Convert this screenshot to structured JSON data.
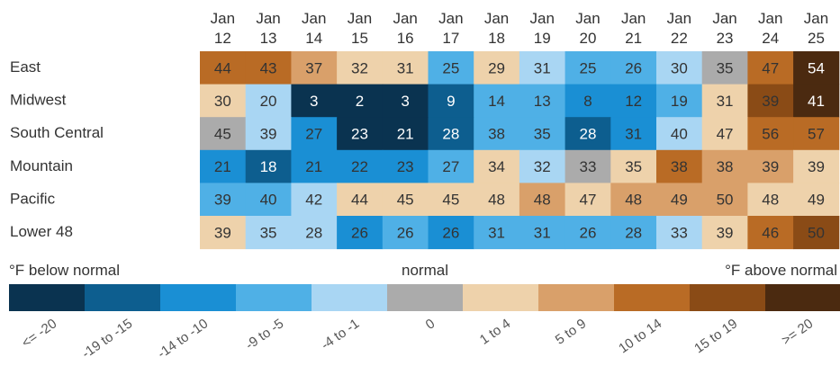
{
  "chart_data": {
    "type": "heatmap",
    "columns": [
      [
        "Jan",
        "12"
      ],
      [
        "Jan",
        "13"
      ],
      [
        "Jan",
        "14"
      ],
      [
        "Jan",
        "15"
      ],
      [
        "Jan",
        "16"
      ],
      [
        "Jan",
        "17"
      ],
      [
        "Jan",
        "18"
      ],
      [
        "Jan",
        "19"
      ],
      [
        "Jan",
        "20"
      ],
      [
        "Jan",
        "21"
      ],
      [
        "Jan",
        "22"
      ],
      [
        "Jan",
        "23"
      ],
      [
        "Jan",
        "24"
      ],
      [
        "Jan",
        "25"
      ]
    ],
    "rows": [
      "East",
      "Midwest",
      "South Central",
      "Mountain",
      "Pacific",
      "Lower 48"
    ],
    "values": [
      [
        44,
        43,
        37,
        32,
        31,
        25,
        29,
        31,
        25,
        26,
        30,
        35,
        47,
        54
      ],
      [
        30,
        20,
        3,
        2,
        3,
        9,
        14,
        13,
        8,
        12,
        19,
        31,
        39,
        41
      ],
      [
        45,
        39,
        27,
        23,
        21,
        28,
        38,
        35,
        28,
        31,
        40,
        47,
        56,
        57
      ],
      [
        21,
        18,
        21,
        22,
        23,
        27,
        34,
        32,
        33,
        35,
        38,
        38,
        39,
        39
      ],
      [
        39,
        40,
        42,
        44,
        45,
        45,
        48,
        48,
        47,
        48,
        49,
        50,
        48,
        49
      ],
      [
        39,
        35,
        28,
        26,
        26,
        26,
        31,
        31,
        26,
        28,
        33,
        39,
        46,
        50
      ]
    ],
    "category_index": [
      [
        8,
        8,
        7,
        6,
        6,
        3,
        6,
        4,
        3,
        3,
        4,
        5,
        8,
        10
      ],
      [
        6,
        4,
        0,
        0,
        0,
        1,
        3,
        3,
        2,
        2,
        3,
        6,
        9,
        10
      ],
      [
        5,
        4,
        2,
        0,
        0,
        1,
        3,
        3,
        1,
        2,
        4,
        6,
        8,
        8
      ],
      [
        2,
        1,
        2,
        2,
        2,
        3,
        6,
        4,
        5,
        6,
        8,
        7,
        7,
        6
      ],
      [
        3,
        3,
        4,
        6,
        6,
        6,
        6,
        7,
        6,
        7,
        7,
        7,
        6,
        6
      ],
      [
        6,
        4,
        4,
        2,
        3,
        2,
        3,
        3,
        3,
        3,
        4,
        6,
        8,
        9
      ]
    ],
    "legend": {
      "left_label": "°F below normal",
      "center_label": "normal",
      "right_label": "°F above normal",
      "categories": [
        "<= -20",
        "-19 to -15",
        "-14 to -10",
        "-9 to -5",
        "-4 to -1",
        "0",
        "1 to 4",
        "5 to 9",
        "10 to 14",
        "15 to 19",
        ">= 20"
      ],
      "colors": [
        "#0a3350",
        "#0d5e8f",
        "#1a8fd4",
        "#4fb0e6",
        "#a9d6f3",
        "#ababab",
        "#eed2ab",
        "#d9a06a",
        "#b96b25",
        "#8a4b16",
        "#4b2a10"
      ]
    },
    "dark_text_color": "#333333",
    "light_text_color": "#ffffff"
  }
}
